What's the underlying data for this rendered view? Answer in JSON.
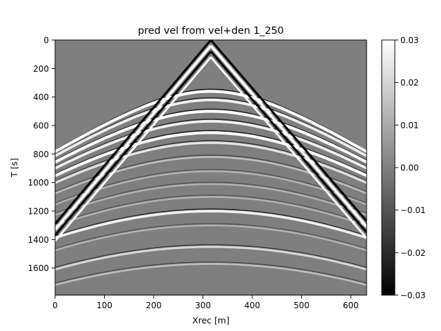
{
  "chart_data": {
    "type": "heatmap",
    "title": "pred vel from vel+den 1_250",
    "xlabel": "Xrec [m]",
    "ylabel": "T [s]",
    "xlim": [
      0,
      632
    ],
    "ylim": [
      1790,
      0
    ],
    "x_ticks": [
      0,
      100,
      200,
      300,
      400,
      500,
      600
    ],
    "y_ticks": [
      0,
      200,
      400,
      600,
      800,
      1000,
      1200,
      1400,
      1600
    ],
    "colormap": "gray",
    "background_color": "#7f7f7f",
    "colorbar": {
      "range": [
        -0.03,
        0.03
      ],
      "ticks": [
        0.03,
        0.02,
        0.01,
        0.0,
        -0.01,
        -0.02,
        -0.03
      ],
      "tick_labels": [
        "0.03",
        "0.02",
        "0.01",
        "0.00",
        "−0.01",
        "−0.02",
        "−0.03"
      ]
    },
    "source_x": 316,
    "direct_wave": {
      "apex_t": 0,
      "left_edge_t": 1290,
      "right_edge_t": 1270,
      "description": "V-shaped white/black bands radiating from the source"
    },
    "reflections": [
      {
        "apex_t": 360,
        "polarity": "white",
        "strength": 1.0
      },
      {
        "apex_t": 420,
        "polarity": "white",
        "strength": 0.9
      },
      {
        "apex_t": 500,
        "polarity": "white",
        "strength": 1.0
      },
      {
        "apex_t": 570,
        "polarity": "white",
        "strength": 0.9
      },
      {
        "apex_t": 650,
        "polarity": "white",
        "strength": 1.0
      },
      {
        "apex_t": 720,
        "polarity": "white",
        "strength": 0.8
      },
      {
        "apex_t": 820,
        "polarity": "white",
        "strength": 0.5
      },
      {
        "apex_t": 920,
        "polarity": "white",
        "strength": 0.4
      },
      {
        "apex_t": 1010,
        "polarity": "white",
        "strength": 0.4
      },
      {
        "apex_t": 1100,
        "polarity": "white",
        "strength": 0.4
      },
      {
        "apex_t": 1200,
        "polarity": "white",
        "strength": 0.9
      },
      {
        "apex_t": 1300,
        "polarity": "white",
        "strength": 0.4
      },
      {
        "apex_t": 1450,
        "polarity": "white",
        "strength": 0.7
      },
      {
        "apex_t": 1570,
        "polarity": "white",
        "strength": 0.5
      }
    ]
  }
}
